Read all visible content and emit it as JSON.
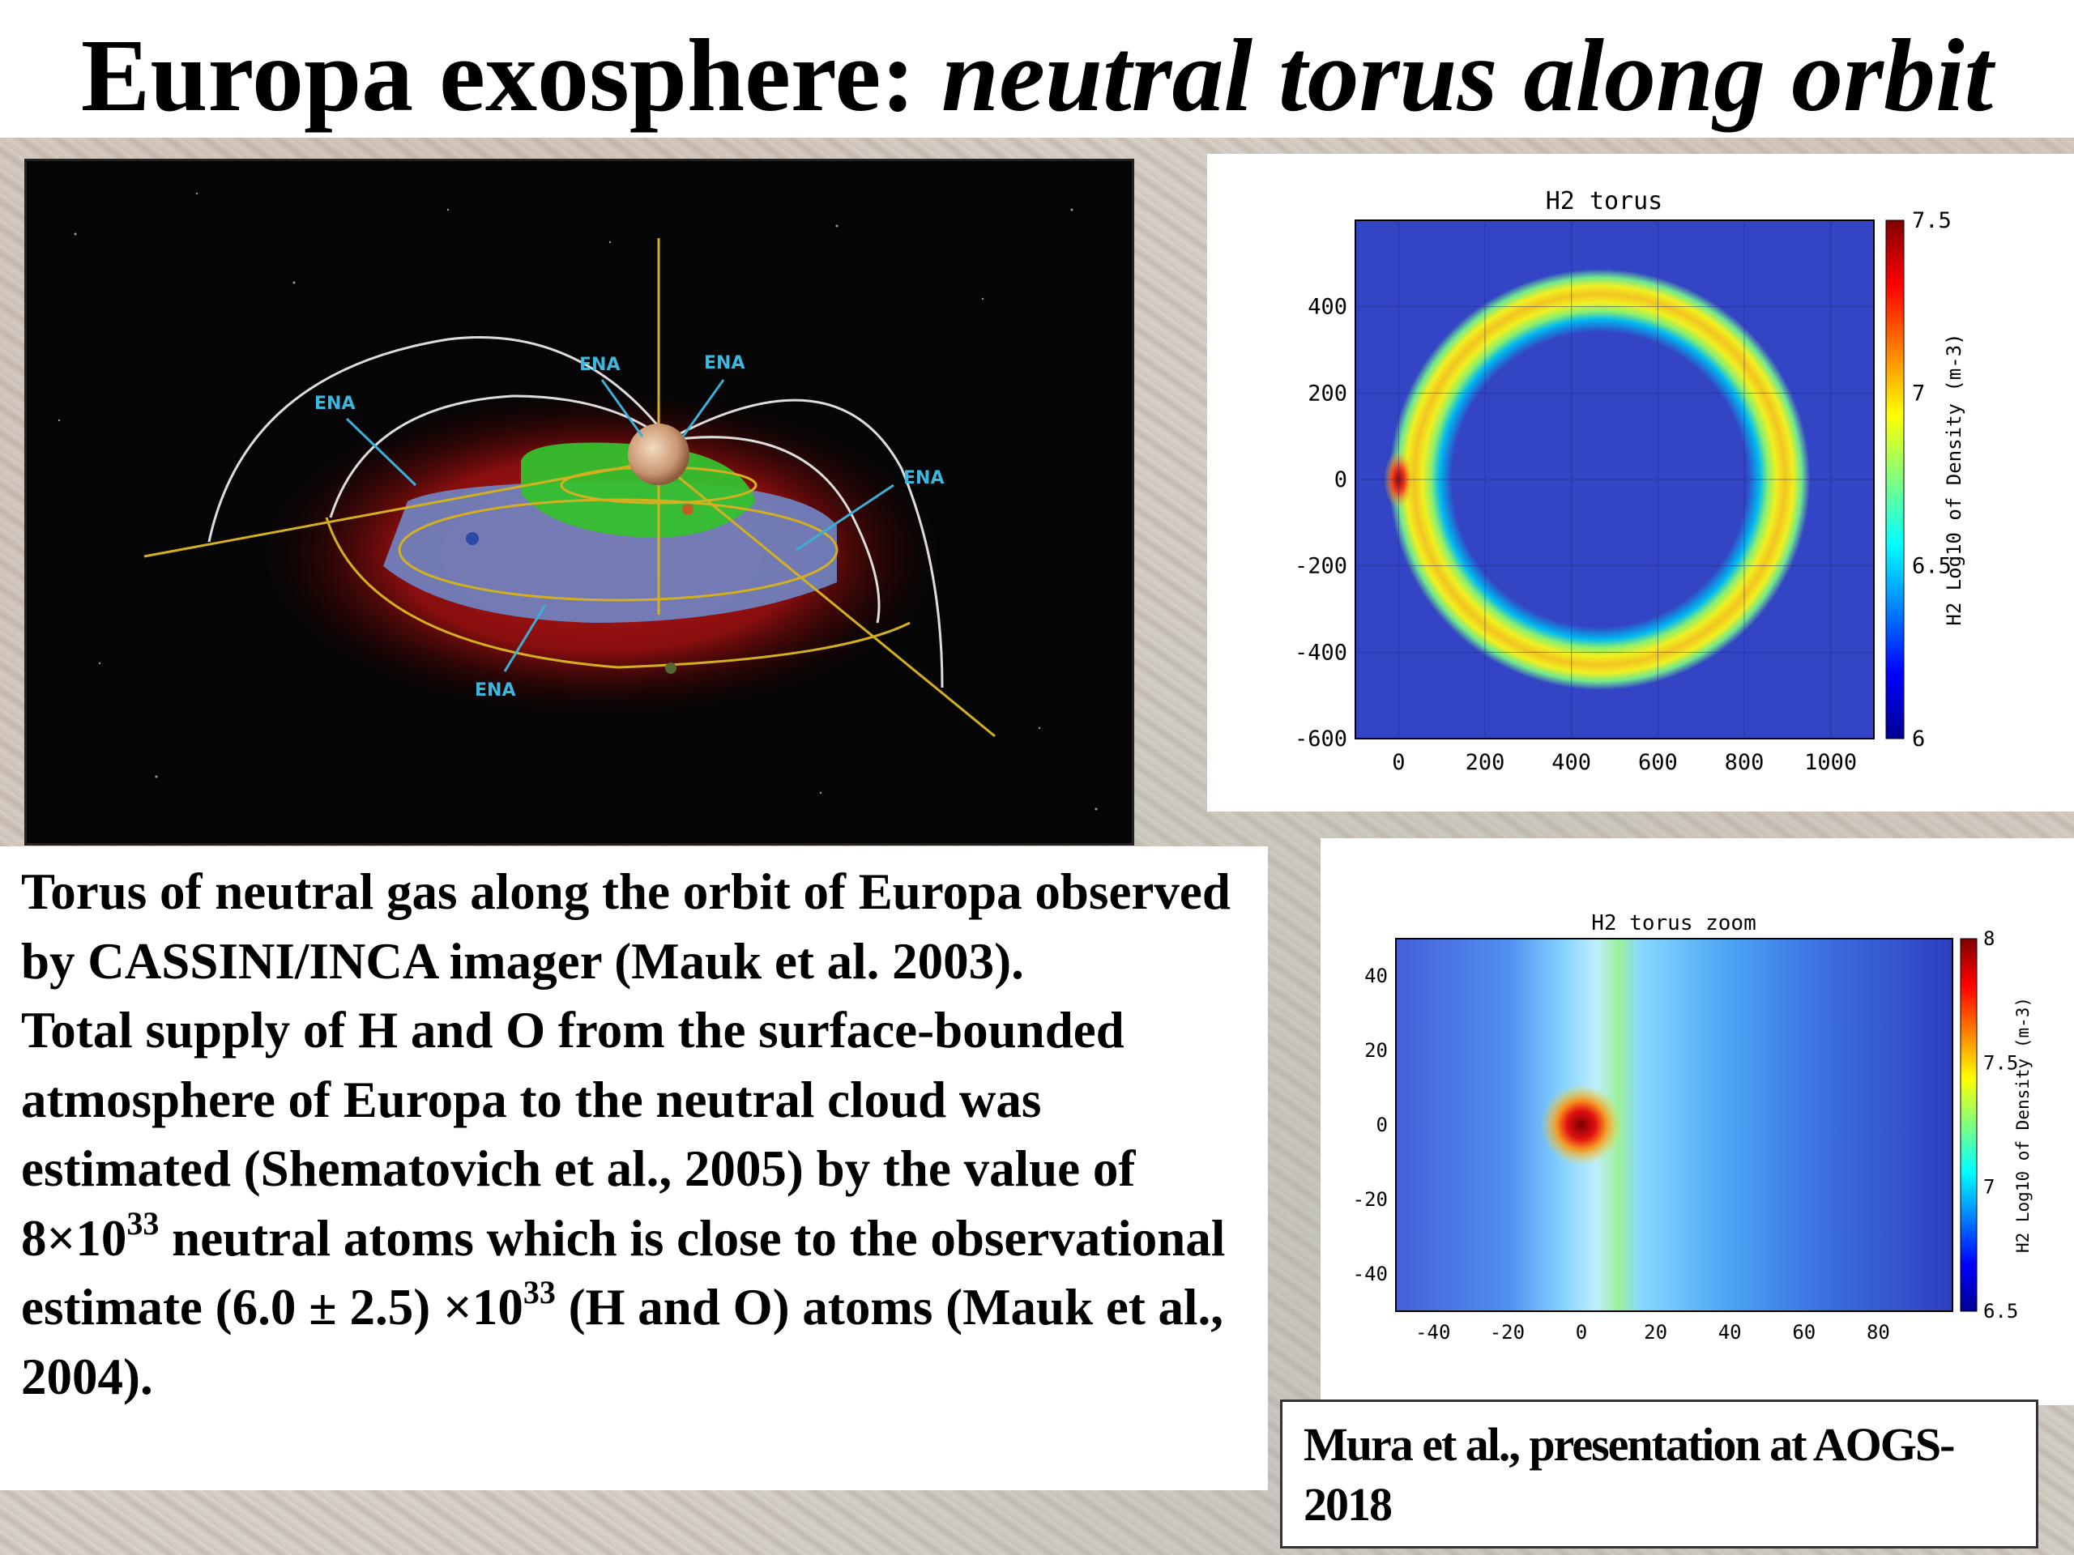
{
  "slide": {
    "title_plain": "Europa exosphere: ",
    "title_italic": "neutral torus along orbit"
  },
  "diagram": {
    "labels": [
      "ENA",
      "ENA",
      "ENA",
      "ENA",
      "ENA"
    ]
  },
  "plot_h2_torus": {
    "title": "H2 torus",
    "colorbar_label": "H2 Log10 of Density (m-3)",
    "colormap": "jet",
    "chart_data": {
      "type": "heatmap",
      "title": "H2 torus",
      "x_ticks": [
        "0",
        "200",
        "400",
        "600",
        "800",
        "1000"
      ],
      "y_ticks": [
        "400",
        "200",
        "0",
        "-200",
        "-400",
        "-600"
      ],
      "colorbar_ticks": [
        "7.5",
        "7",
        "6.5",
        "6"
      ],
      "xlim": [
        -100,
        1100
      ],
      "ylim": [
        -600,
        600
      ],
      "clim": [
        6,
        7.5
      ]
    }
  },
  "plot_h2_zoom": {
    "title": "H2 torus zoom",
    "colorbar_label": "H2 Log10 of Density (m-3)",
    "colormap": "jet",
    "chart_data": {
      "type": "heatmap",
      "title": "H2 torus zoom",
      "x_ticks": [
        "-40",
        "-20",
        "0",
        "20",
        "40",
        "60",
        "80"
      ],
      "y_ticks": [
        "40",
        "20",
        "0",
        "-20",
        "-40"
      ],
      "colorbar_ticks": [
        "8",
        "7.5",
        "7",
        "6.5"
      ],
      "xlim": [
        -50,
        100
      ],
      "ylim": [
        -50,
        50
      ],
      "clim": [
        6.5,
        8
      ]
    }
  },
  "body": {
    "p1": "Torus of neutral gas along the orbit of Europa observed by CASSINI/INCA imager  (Mauk et al. 2003).",
    "p2_a": "Total supply of H and O from the surface-bounded atmosphere of Europa to the neutral cloud was estimated (Shematovich et al., 2005) by the value of 8×10",
    "p2_sup1": "33",
    "p2_b": " neutral atoms which is close to the observational estimate (6.0 ± 2.5) ×10",
    "p2_sup2": "33",
    "p2_c": " (H and O) atoms (Mauk et al., 2004)."
  },
  "credit": {
    "text": "Mura et al., presentation at AOGS-2018"
  }
}
